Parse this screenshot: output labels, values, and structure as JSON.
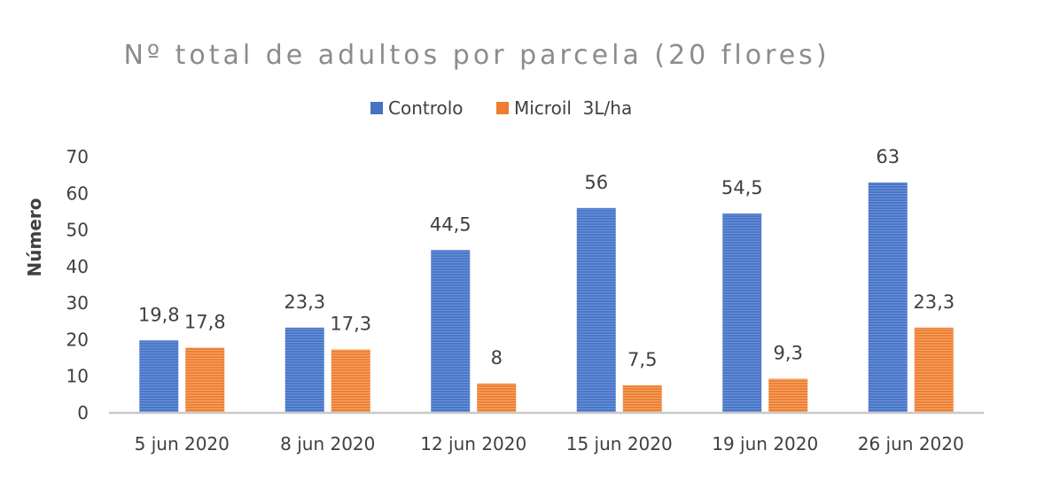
{
  "chart_data": {
    "type": "bar",
    "title": "Nº total de adultos por parcela (20 flores)",
    "xlabel": "",
    "ylabel": "Número",
    "ylim": [
      0,
      70
    ],
    "yticks": [
      0,
      10,
      20,
      30,
      40,
      50,
      60,
      70
    ],
    "grid": false,
    "legend_position": "top",
    "categories": [
      "5 jun 2020",
      "8 jun 2020",
      "12 jun 2020",
      "15 jun 2020",
      "19 jun 2020",
      "26 jun 2020"
    ],
    "series": [
      {
        "name": "Controlo",
        "color": "#4472c4",
        "values": [
          19.8,
          23.3,
          44.5,
          56,
          54.5,
          63
        ],
        "labels": [
          "19,8",
          "23,3",
          "44,5",
          "56",
          "54,5",
          "63"
        ]
      },
      {
        "name": "Microil  3L/ha",
        "color": "#ed7d31",
        "values": [
          17.8,
          17.3,
          8,
          7.5,
          9.3,
          23.3
        ],
        "labels": [
          "17,8",
          "17,3",
          "8",
          "7,5",
          "9,3",
          "23,3"
        ]
      }
    ]
  }
}
